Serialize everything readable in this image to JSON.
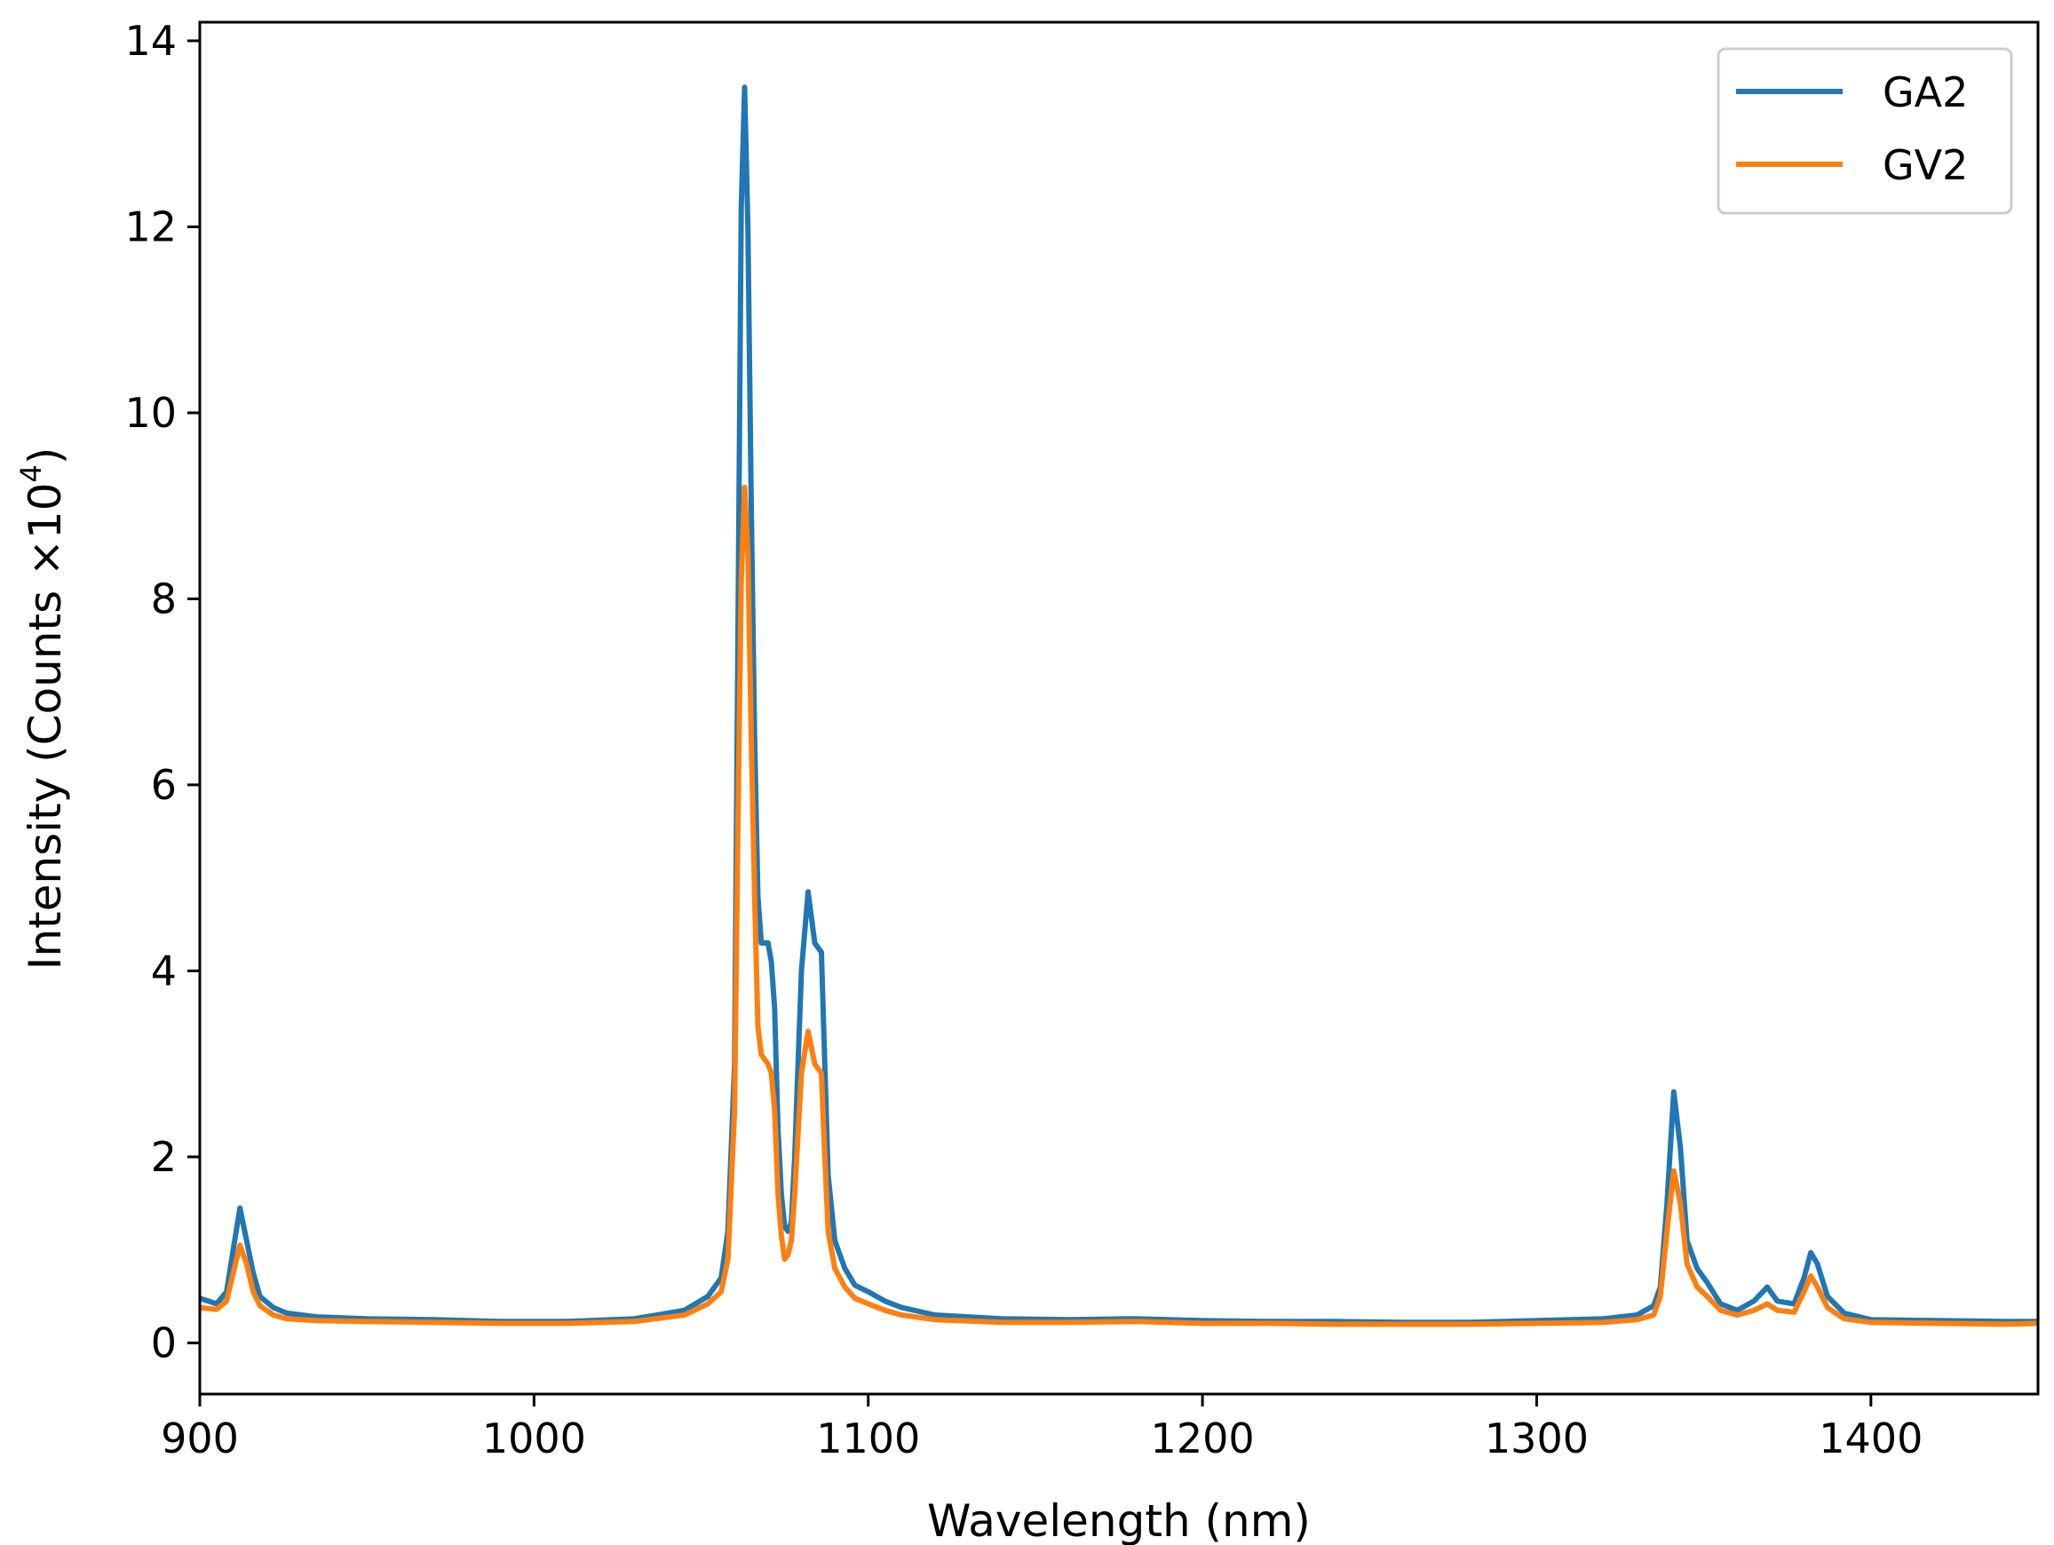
{
  "chart_data": {
    "type": "line",
    "xlabel": "Wavelength (nm)",
    "ylabel_prefix": "Intensity (Counts ×10",
    "ylabel_exp": "4",
    "ylabel_suffix": ")",
    "xlim": [
      900,
      1450
    ],
    "ylim": [
      -0.55,
      14.2
    ],
    "x_ticks": [
      900,
      1000,
      1100,
      1200,
      1300,
      1400
    ],
    "y_ticks": [
      0,
      2,
      4,
      6,
      8,
      10,
      12,
      14
    ],
    "grid": false,
    "legend_position": "top-right",
    "series": [
      {
        "name": "GA2",
        "color": "#1f77b4",
        "points": [
          [
            900,
            0.48
          ],
          [
            905,
            0.42
          ],
          [
            908,
            0.55
          ],
          [
            910,
            1.0
          ],
          [
            912,
            1.45
          ],
          [
            914,
            1.1
          ],
          [
            916,
            0.75
          ],
          [
            918,
            0.5
          ],
          [
            922,
            0.38
          ],
          [
            926,
            0.32
          ],
          [
            935,
            0.28
          ],
          [
            950,
            0.26
          ],
          [
            970,
            0.25
          ],
          [
            990,
            0.23
          ],
          [
            1010,
            0.23
          ],
          [
            1030,
            0.26
          ],
          [
            1045,
            0.35
          ],
          [
            1052,
            0.5
          ],
          [
            1056,
            0.7
          ],
          [
            1058,
            1.2
          ],
          [
            1060,
            3.0
          ],
          [
            1061,
            7.5
          ],
          [
            1062,
            12.2
          ],
          [
            1063,
            13.5
          ],
          [
            1064,
            12.0
          ],
          [
            1065,
            9.0
          ],
          [
            1066,
            6.5
          ],
          [
            1067,
            4.8
          ],
          [
            1068,
            4.3
          ],
          [
            1070,
            4.3
          ],
          [
            1071,
            4.1
          ],
          [
            1072,
            3.6
          ],
          [
            1073,
            2.3
          ],
          [
            1074,
            1.6
          ],
          [
            1075,
            1.25
          ],
          [
            1076,
            1.2
          ],
          [
            1077,
            1.3
          ],
          [
            1078,
            2.0
          ],
          [
            1080,
            4.0
          ],
          [
            1082,
            4.85
          ],
          [
            1084,
            4.3
          ],
          [
            1086,
            4.2
          ],
          [
            1087,
            3.0
          ],
          [
            1088,
            1.8
          ],
          [
            1090,
            1.1
          ],
          [
            1093,
            0.8
          ],
          [
            1096,
            0.62
          ],
          [
            1100,
            0.55
          ],
          [
            1105,
            0.45
          ],
          [
            1110,
            0.38
          ],
          [
            1120,
            0.3
          ],
          [
            1140,
            0.26
          ],
          [
            1160,
            0.25
          ],
          [
            1180,
            0.26
          ],
          [
            1200,
            0.24
          ],
          [
            1220,
            0.23
          ],
          [
            1240,
            0.23
          ],
          [
            1260,
            0.22
          ],
          [
            1280,
            0.22
          ],
          [
            1300,
            0.24
          ],
          [
            1320,
            0.26
          ],
          [
            1330,
            0.3
          ],
          [
            1335,
            0.4
          ],
          [
            1337,
            0.6
          ],
          [
            1339,
            1.5
          ],
          [
            1341,
            2.7
          ],
          [
            1343,
            2.1
          ],
          [
            1345,
            1.1
          ],
          [
            1348,
            0.8
          ],
          [
            1351,
            0.65
          ],
          [
            1355,
            0.42
          ],
          [
            1360,
            0.35
          ],
          [
            1365,
            0.45
          ],
          [
            1369,
            0.6
          ],
          [
            1372,
            0.45
          ],
          [
            1377,
            0.42
          ],
          [
            1380,
            0.7
          ],
          [
            1382,
            0.97
          ],
          [
            1384,
            0.85
          ],
          [
            1387,
            0.5
          ],
          [
            1392,
            0.32
          ],
          [
            1400,
            0.25
          ],
          [
            1420,
            0.24
          ],
          [
            1440,
            0.23
          ],
          [
            1450,
            0.23
          ]
        ]
      },
      {
        "name": "GV2",
        "color": "#ff7f0e",
        "points": [
          [
            900,
            0.38
          ],
          [
            905,
            0.36
          ],
          [
            908,
            0.45
          ],
          [
            910,
            0.75
          ],
          [
            912,
            1.05
          ],
          [
            914,
            0.85
          ],
          [
            916,
            0.55
          ],
          [
            918,
            0.4
          ],
          [
            922,
            0.3
          ],
          [
            926,
            0.26
          ],
          [
            935,
            0.24
          ],
          [
            950,
            0.23
          ],
          [
            970,
            0.22
          ],
          [
            990,
            0.21
          ],
          [
            1010,
            0.21
          ],
          [
            1030,
            0.23
          ],
          [
            1045,
            0.3
          ],
          [
            1052,
            0.42
          ],
          [
            1056,
            0.55
          ],
          [
            1058,
            0.9
          ],
          [
            1060,
            2.5
          ],
          [
            1061,
            5.5
          ],
          [
            1062,
            8.2
          ],
          [
            1063,
            9.2
          ],
          [
            1064,
            8.5
          ],
          [
            1065,
            6.5
          ],
          [
            1066,
            4.8
          ],
          [
            1067,
            3.4
          ],
          [
            1068,
            3.1
          ],
          [
            1070,
            3.0
          ],
          [
            1071,
            2.9
          ],
          [
            1072,
            2.5
          ],
          [
            1073,
            1.6
          ],
          [
            1074,
            1.15
          ],
          [
            1075,
            0.9
          ],
          [
            1076,
            0.95
          ],
          [
            1077,
            1.1
          ],
          [
            1078,
            1.6
          ],
          [
            1080,
            2.9
          ],
          [
            1082,
            3.35
          ],
          [
            1084,
            3.0
          ],
          [
            1086,
            2.9
          ],
          [
            1087,
            2.0
          ],
          [
            1088,
            1.2
          ],
          [
            1090,
            0.8
          ],
          [
            1093,
            0.6
          ],
          [
            1096,
            0.48
          ],
          [
            1100,
            0.42
          ],
          [
            1105,
            0.35
          ],
          [
            1110,
            0.3
          ],
          [
            1120,
            0.25
          ],
          [
            1140,
            0.22
          ],
          [
            1160,
            0.22
          ],
          [
            1180,
            0.23
          ],
          [
            1200,
            0.21
          ],
          [
            1220,
            0.21
          ],
          [
            1240,
            0.2
          ],
          [
            1260,
            0.2
          ],
          [
            1280,
            0.2
          ],
          [
            1300,
            0.21
          ],
          [
            1320,
            0.22
          ],
          [
            1330,
            0.25
          ],
          [
            1335,
            0.3
          ],
          [
            1337,
            0.5
          ],
          [
            1339,
            1.2
          ],
          [
            1341,
            1.85
          ],
          [
            1343,
            1.5
          ],
          [
            1345,
            0.85
          ],
          [
            1348,
            0.6
          ],
          [
            1351,
            0.5
          ],
          [
            1355,
            0.35
          ],
          [
            1360,
            0.3
          ],
          [
            1365,
            0.35
          ],
          [
            1369,
            0.42
          ],
          [
            1372,
            0.35
          ],
          [
            1377,
            0.33
          ],
          [
            1380,
            0.55
          ],
          [
            1382,
            0.72
          ],
          [
            1384,
            0.6
          ],
          [
            1387,
            0.38
          ],
          [
            1392,
            0.26
          ],
          [
            1400,
            0.22
          ],
          [
            1420,
            0.21
          ],
          [
            1440,
            0.2
          ],
          [
            1450,
            0.21
          ]
        ]
      }
    ]
  }
}
